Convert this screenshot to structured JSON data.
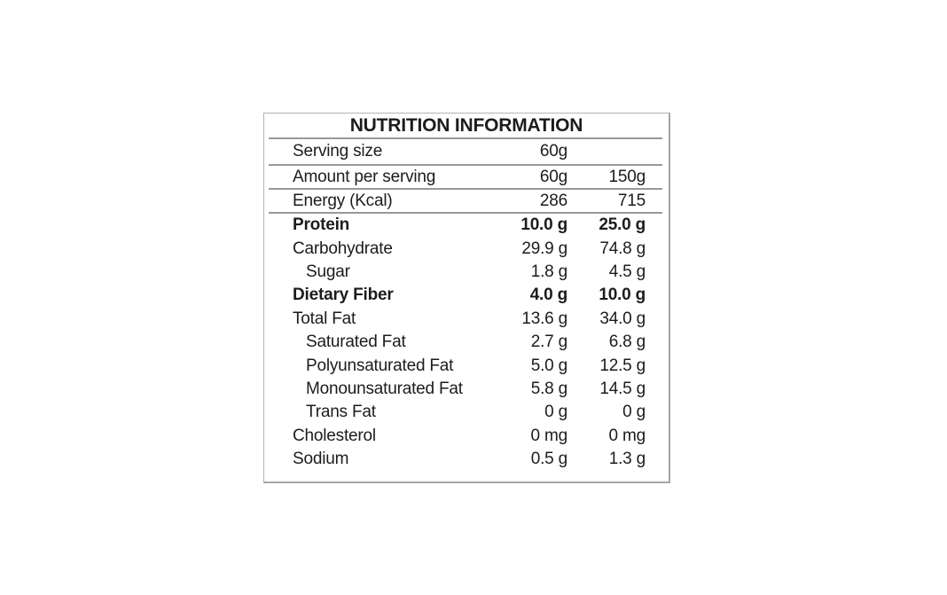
{
  "label": {
    "title": "NUTRITION INFORMATION",
    "serving_rows": [
      {
        "label": "Serving size",
        "col1": "60g",
        "col2": ""
      },
      {
        "label": "Amount per serving",
        "col1": "60g",
        "col2": "150g"
      },
      {
        "label": "Energy (Kcal)",
        "col1": "286",
        "col2": "715"
      }
    ],
    "nutrient_rows": [
      {
        "label": "Protein",
        "col1": "10.0 g",
        "col2": "25.0 g",
        "bold": true,
        "indent": false
      },
      {
        "label": "Carbohydrate",
        "col1": "29.9 g",
        "col2": "74.8 g",
        "bold": false,
        "indent": false
      },
      {
        "label": "Sugar",
        "col1": "1.8 g",
        "col2": "4.5 g",
        "bold": false,
        "indent": true
      },
      {
        "label": "Dietary Fiber",
        "col1": "4.0 g",
        "col2": "10.0 g",
        "bold": true,
        "indent": false
      },
      {
        "label": "Total Fat",
        "col1": "13.6 g",
        "col2": "34.0 g",
        "bold": false,
        "indent": false
      },
      {
        "label": "Saturated Fat",
        "col1": "2.7 g",
        "col2": "6.8 g",
        "bold": false,
        "indent": true
      },
      {
        "label": "Polyunsaturated Fat",
        "col1": "5.0 g",
        "col2": "12.5 g",
        "bold": false,
        "indent": true
      },
      {
        "label": "Monounsaturated Fat",
        "col1": "5.8 g",
        "col2": "14.5 g",
        "bold": false,
        "indent": true
      },
      {
        "label": "Trans Fat",
        "col1": "0 g",
        "col2": "0 g",
        "bold": false,
        "indent": true
      },
      {
        "label": "Cholesterol",
        "col1": "0 mg",
        "col2": "0 mg",
        "bold": false,
        "indent": false
      },
      {
        "label": "Sodium",
        "col1": "0.5 g",
        "col2": "1.3 g",
        "bold": false,
        "indent": false
      }
    ],
    "colors": {
      "text": "#1c1c1e",
      "divider": "#989898",
      "border": "#b4b0b0",
      "background": "#ffffff"
    }
  }
}
